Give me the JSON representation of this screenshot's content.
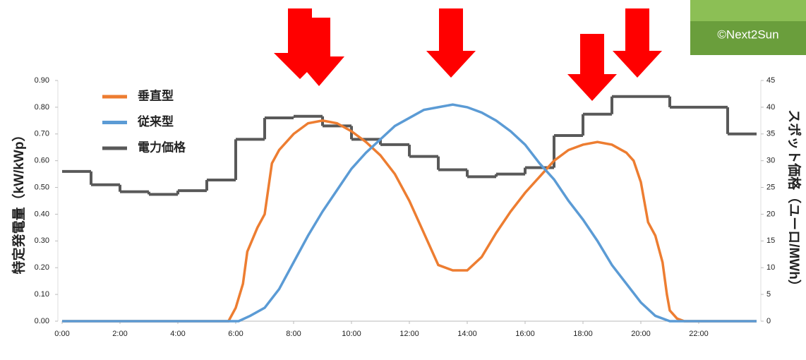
{
  "chart_data": {
    "type": "line",
    "y_label": "特定発電量（kW/kWp）",
    "y2_label": "スポット価格（ユーロ/MWh）",
    "photo_credit": "©Next2Sun",
    "xlim": [
      0,
      24
    ],
    "xticks": [
      {
        "value": 0,
        "label": "0:00"
      },
      {
        "value": 2,
        "label": "2:00"
      },
      {
        "value": 4,
        "label": "4:00"
      },
      {
        "value": 6,
        "label": "6:00"
      },
      {
        "value": 8,
        "label": "8:00"
      },
      {
        "value": 10,
        "label": "10:00"
      },
      {
        "value": 12,
        "label": "12:00"
      },
      {
        "value": 14,
        "label": "14:00"
      },
      {
        "value": 16,
        "label": "16:00"
      },
      {
        "value": 18,
        "label": "18:00"
      },
      {
        "value": 20,
        "label": "20:00"
      },
      {
        "value": 22,
        "label": "22:00"
      }
    ],
    "ylim": [
      0,
      0.9
    ],
    "yticks": [
      {
        "value": 0,
        "label": "0.00"
      },
      {
        "value": 0.1,
        "label": "0.10"
      },
      {
        "value": 0.2,
        "label": "0.20"
      },
      {
        "value": 0.3,
        "label": "0.30"
      },
      {
        "value": 0.4,
        "label": "0.40"
      },
      {
        "value": 0.5,
        "label": "0.50"
      },
      {
        "value": 0.6,
        "label": "0.60"
      },
      {
        "value": 0.7,
        "label": "0.70"
      },
      {
        "value": 0.8,
        "label": "0.80"
      },
      {
        "value": 0.9,
        "label": "0.90"
      }
    ],
    "y2lim": [
      0,
      45
    ],
    "y2ticks": [
      0,
      5,
      10,
      15,
      20,
      25,
      30,
      35,
      40,
      45
    ],
    "series": [
      {
        "name": "垂直型",
        "color": "#ed7d31",
        "x": [
          0,
          5.75,
          6,
          6.25,
          6.4,
          6.75,
          7,
          7.25,
          7.5,
          8,
          8.5,
          9,
          9.5,
          10,
          10.5,
          11,
          11.5,
          12,
          12.5,
          13,
          13.5,
          14,
          14.5,
          15,
          15.5,
          16,
          16.5,
          17,
          17.5,
          18,
          18.5,
          19,
          19.5,
          19.75,
          20,
          20.25,
          20.5,
          20.75,
          20.9,
          21,
          21.25,
          21.5,
          24
        ],
        "values": [
          0,
          0,
          0.05,
          0.14,
          0.26,
          0.35,
          0.4,
          0.59,
          0.64,
          0.7,
          0.74,
          0.75,
          0.74,
          0.71,
          0.67,
          0.62,
          0.55,
          0.45,
          0.33,
          0.21,
          0.19,
          0.19,
          0.24,
          0.33,
          0.41,
          0.48,
          0.54,
          0.6,
          0.64,
          0.66,
          0.67,
          0.66,
          0.63,
          0.6,
          0.52,
          0.37,
          0.32,
          0.22,
          0.1,
          0.04,
          0.01,
          0,
          0
        ]
      },
      {
        "name": "従来型",
        "color": "#5b9bd5",
        "x": [
          0,
          6.1,
          6.5,
          7,
          7.5,
          8,
          8.5,
          9,
          9.5,
          10,
          10.5,
          11,
          11.5,
          12,
          12.5,
          13,
          13.5,
          14,
          14.5,
          15,
          15.5,
          16,
          16.5,
          17,
          17.5,
          18,
          18.5,
          19,
          19.5,
          20,
          20.5,
          21,
          24
        ],
        "values": [
          0,
          0,
          0.02,
          0.05,
          0.12,
          0.22,
          0.32,
          0.41,
          0.49,
          0.57,
          0.63,
          0.68,
          0.73,
          0.76,
          0.79,
          0.8,
          0.81,
          0.8,
          0.78,
          0.75,
          0.71,
          0.66,
          0.59,
          0.53,
          0.45,
          0.38,
          0.3,
          0.21,
          0.14,
          0.07,
          0.02,
          0,
          0
        ]
      },
      {
        "name": "電力価格",
        "color": "#595959",
        "axis": "y2",
        "step": true,
        "x": [
          0,
          1,
          2,
          3,
          4,
          5,
          6,
          7,
          8,
          9,
          10,
          11,
          12,
          13,
          14,
          15,
          16,
          17,
          18,
          19,
          20,
          21,
          22,
          23
        ],
        "values": [
          28,
          25.5,
          24.2,
          23.7,
          24.4,
          26.4,
          34,
          38,
          38.3,
          36.5,
          34,
          33,
          30.8,
          28.3,
          27,
          27.5,
          28.7,
          34.7,
          38.7,
          42,
          42,
          40,
          40,
          35
        ]
      }
    ]
  }
}
